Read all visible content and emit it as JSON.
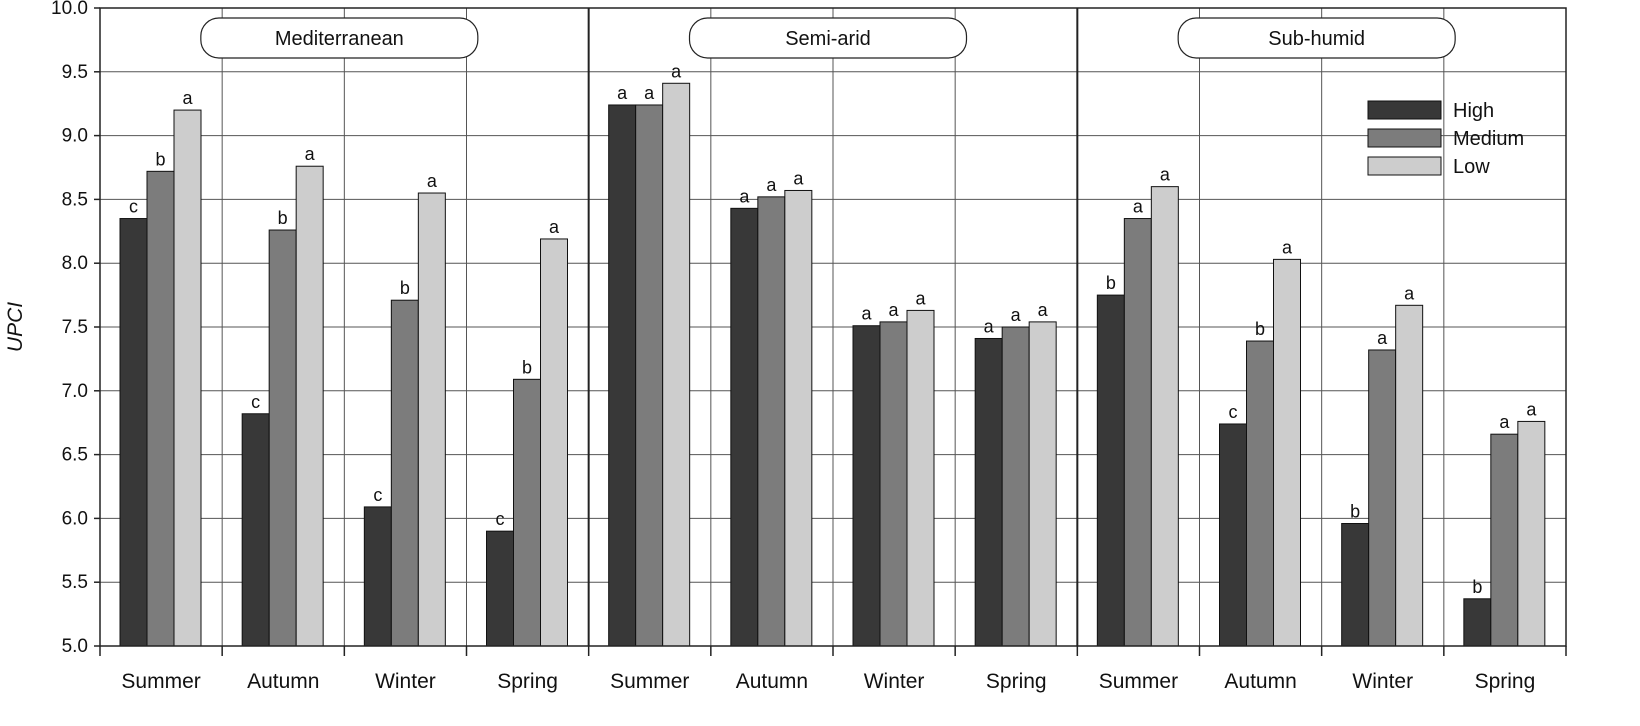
{
  "chart_data": {
    "type": "bar",
    "ylabel": "UPCI",
    "xlabel": "",
    "ylim": [
      5.0,
      10.0
    ],
    "yticks": [
      "5.0",
      "5.5",
      "6.0",
      "6.5",
      "7.0",
      "7.5",
      "8.0",
      "8.5",
      "9.0",
      "9.5",
      "10.0"
    ],
    "grid": true,
    "legend_position": "top-right",
    "series_names": [
      "High",
      "Medium",
      "Low"
    ],
    "series_colors": [
      "#383838",
      "#7c7c7c",
      "#cdcdcd"
    ],
    "panels": [
      {
        "title": "Mediterranean",
        "categories": [
          "Summer",
          "Autumn",
          "Winter",
          "Spring"
        ],
        "series": [
          {
            "name": "High",
            "values": [
              8.35,
              6.82,
              6.09,
              5.9
            ],
            "letters": [
              "c",
              "c",
              "c",
              "c"
            ]
          },
          {
            "name": "Medium",
            "values": [
              8.72,
              8.26,
              7.71,
              7.09
            ],
            "letters": [
              "b",
              "b",
              "b",
              "b"
            ]
          },
          {
            "name": "Low",
            "values": [
              9.2,
              8.76,
              8.55,
              8.19
            ],
            "letters": [
              "a",
              "a",
              "a",
              "a"
            ]
          }
        ]
      },
      {
        "title": "Semi-arid",
        "categories": [
          "Summer",
          "Autumn",
          "Winter",
          "Spring"
        ],
        "series": [
          {
            "name": "High",
            "values": [
              9.24,
              8.43,
              7.51,
              7.41
            ],
            "letters": [
              "a",
              "a",
              "a",
              "a"
            ]
          },
          {
            "name": "Medium",
            "values": [
              9.24,
              8.52,
              7.54,
              7.5
            ],
            "letters": [
              "a",
              "a",
              "a",
              "a"
            ]
          },
          {
            "name": "Low",
            "values": [
              9.41,
              8.57,
              7.63,
              7.54
            ],
            "letters": [
              "a",
              "a",
              "a",
              "a"
            ]
          }
        ]
      },
      {
        "title": "Sub-humid",
        "categories": [
          "Summer",
          "Autumn",
          "Winter",
          "Spring"
        ],
        "series": [
          {
            "name": "High",
            "values": [
              7.75,
              6.74,
              5.96,
              5.37
            ],
            "letters": [
              "b",
              "c",
              "b",
              "b"
            ]
          },
          {
            "name": "Medium",
            "values": [
              8.35,
              7.39,
              7.32,
              6.66
            ],
            "letters": [
              "a",
              "b",
              "a",
              "a"
            ]
          },
          {
            "name": "Low",
            "values": [
              8.6,
              8.03,
              7.67,
              6.76
            ],
            "letters": [
              "a",
              "a",
              "a",
              "a"
            ]
          }
        ]
      }
    ]
  }
}
